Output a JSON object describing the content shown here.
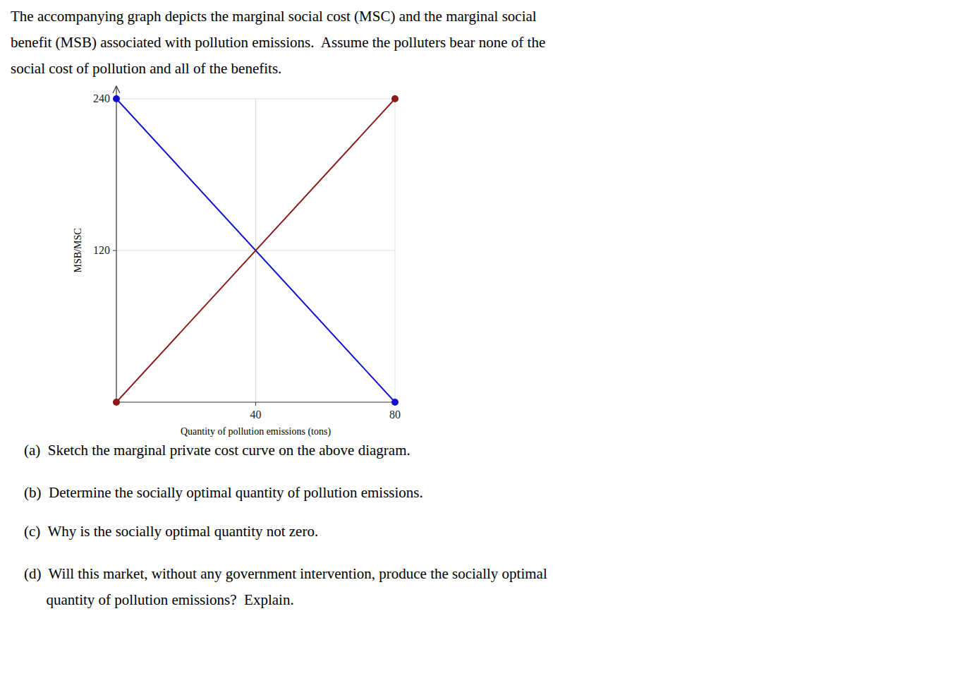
{
  "chart_data": {
    "type": "line",
    "title": [
      "The accompanying graph depicts the marginal social cost (MSC) and the marginal social",
      "benefit (MSB) associated with pollution emissions.  Assume the polluters bear none of the",
      "social cost of pollution and all of the benefits."
    ],
    "x_label": "Quantity of pollution emissions (tons)",
    "y_label": "MSB/MSC",
    "x": [
      0,
      80
    ],
    "series": [
      {
        "color": "#1111CC",
        "marker": "circle",
        "values": [
          240,
          0
        ]
      },
      {
        "color": "#8B1A1A",
        "marker": "circle",
        "values": [
          0,
          240
        ]
      }
    ],
    "xlim": [
      0,
      80
    ],
    "ylim": [
      0,
      240
    ],
    "xticks": [
      40,
      80
    ],
    "yticks": [
      120,
      240
    ],
    "grid": true,
    "annotations": [
      [
        "(a)  Sketch the marginal private cost curve on the above diagram."
      ],
      [
        "(b)  Determine the socially optimal quantity of pollution emissions."
      ],
      [
        "(c)  Why is the socially optimal quantity not zero."
      ],
      [
        "(d)  Will this market, without any government intervention, produce the socially optimal",
        "      quantity of pollution emissions?  Explain."
      ]
    ]
  }
}
